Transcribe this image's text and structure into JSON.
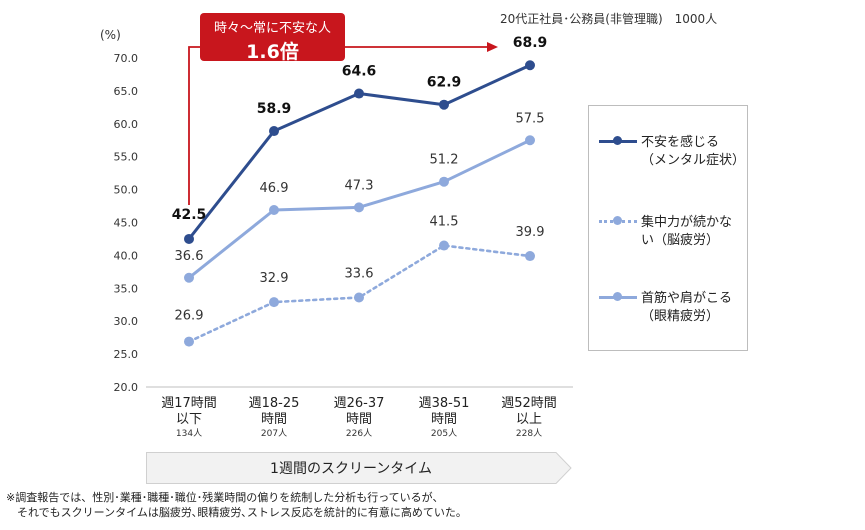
{
  "note_top": "20代正社員･公務員(非管理職)　1000人",
  "y_unit": "(%)",
  "callout": {
    "line1": "時々～常に不安な人",
    "line2": "1.6倍"
  },
  "x_axis_title": "1週間のスクリーンタイム",
  "footnote": {
    "line1": "※調査報告では、性別･業種･職種･職位･残業時間の偏りを統制した分析も行っているが、",
    "line2": "　それでもスクリーンタイムは脳疲労､眼精疲労､ストレス反応を統計的に有意に高めていた。"
  },
  "colors": {
    "accent_red": "#c8161d",
    "series1": "#2e4d8e",
    "series2": "#8ea9dc",
    "series3": "#8ea9dc"
  },
  "chart_data": {
    "type": "line",
    "categories": [
      {
        "line1": "週17時間",
        "line2": "以下",
        "count": "134人"
      },
      {
        "line1": "週18-25",
        "line2": "時間",
        "count": "207人"
      },
      {
        "line1": "週26-37",
        "line2": "時間",
        "count": "226人"
      },
      {
        "line1": "週38-51",
        "line2": "時間",
        "count": "205人"
      },
      {
        "line1": "週52時間",
        "line2": "以上",
        "count": "228人"
      }
    ],
    "ylim": [
      20.0,
      70.0
    ],
    "yticks": [
      "20.0",
      "25.0",
      "30.0",
      "35.0",
      "40.0",
      "45.0",
      "50.0",
      "55.0",
      "60.0",
      "65.0",
      "70.0"
    ],
    "series": [
      {
        "name": "不安を感じる（メンタル症状）",
        "legend_lines": [
          "不安を感じる",
          "（メンタル症状）"
        ],
        "values": [
          42.5,
          58.9,
          64.6,
          62.9,
          68.9
        ],
        "labels": [
          "42.5",
          "58.9",
          "64.6",
          "62.9",
          "68.9"
        ],
        "style": "solid",
        "color": "#2e4d8e",
        "bold_labels": true
      },
      {
        "name": "集中力が続かない（脳疲労）",
        "legend_lines": [
          "集中力が続かな",
          "い（脳疲労）"
        ],
        "values": [
          26.9,
          32.9,
          33.6,
          41.5,
          39.9
        ],
        "labels": [
          "26.9",
          "32.9",
          "33.6",
          "41.5",
          "39.9"
        ],
        "style": "dotted",
        "color": "#8ea9dc",
        "bold_labels": false
      },
      {
        "name": "首筋や肩がこる（眼精疲労）",
        "legend_lines": [
          "首筋や肩がこる",
          "（眼精疲労）"
        ],
        "values": [
          36.6,
          46.9,
          47.3,
          51.2,
          57.5
        ],
        "labels": [
          "36.6",
          "46.9",
          "47.3",
          "51.2",
          "57.5"
        ],
        "style": "solid",
        "color": "#8ea9dc",
        "bold_labels": false
      }
    ],
    "legend_position": "right",
    "grid": false
  }
}
